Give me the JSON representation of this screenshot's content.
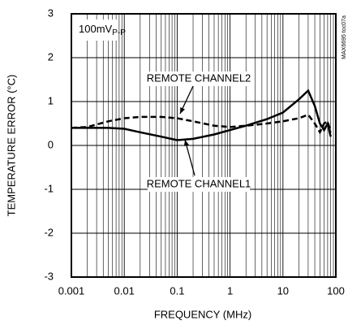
{
  "chart_data": {
    "type": "line",
    "xlabel": "FREQUENCY (MHz)",
    "ylabel": "TEMPERATURE ERROR (°C)",
    "x": [
      0.001,
      0.002,
      0.005,
      0.01,
      0.02,
      0.05,
      0.1,
      0.2,
      0.5,
      1,
      2,
      5,
      10,
      20,
      30,
      40,
      50,
      60,
      70,
      80
    ],
    "series": [
      {
        "name": "REMOTE CHANNEL1",
        "color": "#000000",
        "style": "solid",
        "values": [
          0.4,
          0.4,
          0.4,
          0.38,
          0.3,
          0.2,
          0.12,
          0.15,
          0.25,
          0.35,
          0.45,
          0.6,
          0.75,
          1.05,
          1.25,
          0.9,
          0.5,
          0.35,
          0.5,
          0.2
        ]
      },
      {
        "name": "REMOTE CHANNEL2",
        "color": "#000000",
        "style": "dashed",
        "values": [
          0.4,
          0.42,
          0.55,
          0.62,
          0.65,
          0.65,
          0.62,
          0.55,
          0.45,
          0.42,
          0.45,
          0.5,
          0.55,
          0.62,
          0.7,
          0.5,
          0.3,
          0.5,
          0.55,
          0.3
        ]
      }
    ],
    "xlim": [
      0.001,
      100
    ],
    "xticks": [
      0.001,
      0.01,
      0.1,
      1,
      10,
      100
    ],
    "xscale": "log",
    "ylim": [
      -3,
      3
    ],
    "yticks": [
      -3,
      -2,
      -1,
      0,
      1,
      2,
      3
    ],
    "grid": true,
    "annotations": [
      {
        "text": "100mV",
        "subscript": "P-P"
      }
    ],
    "side_note": "MAX6695 toc07a"
  }
}
